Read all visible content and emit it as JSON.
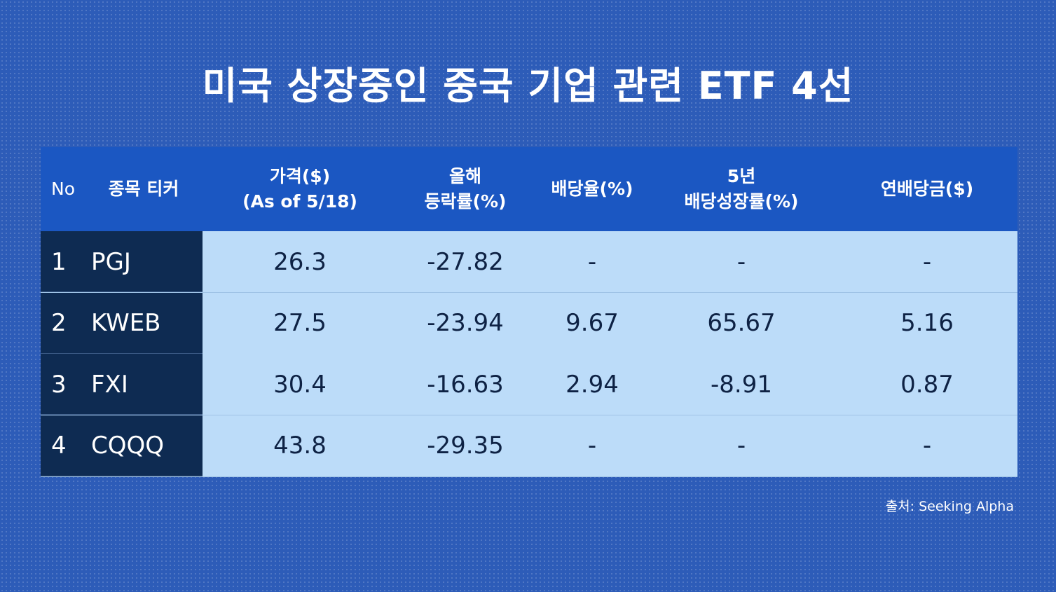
{
  "title": "미국 상장중인 중국 기업 관련 ETF 4선",
  "table": {
    "headers": [
      [
        "No"
      ],
      [
        "종목 티커"
      ],
      [
        "가격($)",
        "(As of 5/18)"
      ],
      [
        "올해",
        "등락률(%)"
      ],
      [
        "배당율(%)"
      ],
      [
        "5년",
        "배당성장률(%)"
      ],
      [
        "연배당금($)"
      ]
    ],
    "rows": [
      [
        "1",
        "PGJ",
        "26.3",
        "-27.82",
        "-",
        "-",
        "-"
      ],
      [
        "2",
        "KWEB",
        "27.5",
        "-23.94",
        "9.67",
        "65.67",
        "5.16"
      ],
      [
        "3",
        "FXI",
        "30.4",
        "-16.63",
        "2.94",
        "-8.91",
        "0.87"
      ],
      [
        "4",
        "CQQQ",
        "43.8",
        "-29.35",
        "-",
        "-",
        "-"
      ]
    ]
  },
  "source": "출처: Seeking Alpha"
}
